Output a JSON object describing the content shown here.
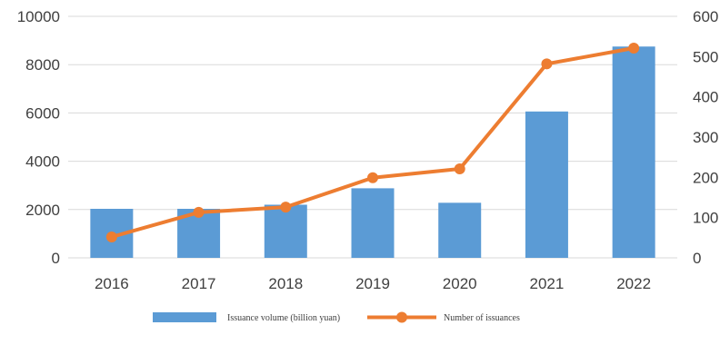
{
  "chart_data": {
    "type": "bar+line",
    "categories": [
      "2016",
      "2017",
      "2018",
      "2019",
      "2020",
      "2021",
      "2022"
    ],
    "series": [
      {
        "name": "Issuance volume (billion yuan)",
        "type": "bar",
        "axis": "left",
        "color": "#5b9bd5",
        "values": [
          2030,
          2030,
          2200,
          2880,
          2280,
          6060,
          8750
        ]
      },
      {
        "name": "Number of issuances",
        "type": "line",
        "axis": "right",
        "color": "#ed7d31",
        "values": [
          52,
          113,
          126,
          199,
          221,
          482,
          521
        ]
      }
    ],
    "y_left": {
      "ylim": [
        0,
        10000
      ],
      "ticks": [
        "0",
        "2000",
        "4000",
        "6000",
        "8000",
        "10000"
      ]
    },
    "y_right": {
      "ylim": [
        0,
        600
      ],
      "ticks": [
        "0",
        "100",
        "200",
        "300",
        "400",
        "500",
        "600"
      ]
    },
    "grid": true,
    "legend_position": "bottom",
    "title": "",
    "xlabel": "",
    "ylabel": ""
  }
}
